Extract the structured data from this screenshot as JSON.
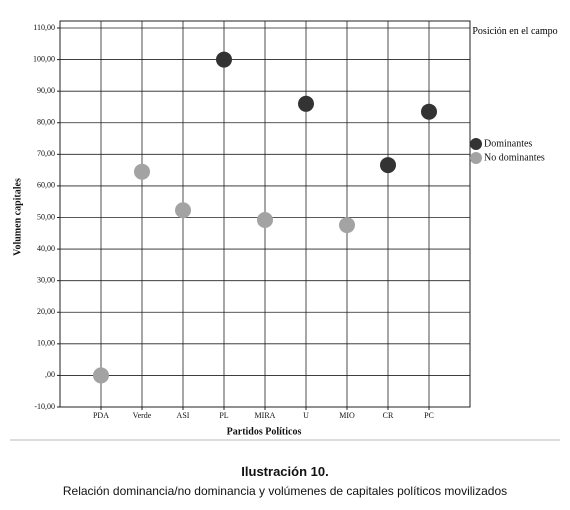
{
  "chart_data": {
    "type": "scatter",
    "y_label": "Volumen capitales",
    "x_label": "Partidos Políticos",
    "categories": [
      "PDA",
      "Verde",
      "ASI",
      "PL",
      "MIRA",
      "U",
      "MIO",
      "CR",
      "PC"
    ],
    "series": [
      {
        "name": "Dominantes",
        "color": "#333333",
        "values": [
          null,
          null,
          null,
          100,
          null,
          86,
          null,
          66.6,
          83.5
        ]
      },
      {
        "name": "No dominantes",
        "color": "#a3a3a3",
        "values": [
          0,
          64.5,
          52.3,
          null,
          49.2,
          null,
          47.6,
          null,
          null
        ]
      }
    ],
    "ylim": [
      -10,
      110
    ],
    "yticks": [
      {
        "value": -10,
        "label": "-10,00"
      },
      {
        "value": 0,
        "label": ",00"
      },
      {
        "value": 10,
        "label": "10,00"
      },
      {
        "value": 20,
        "label": "20,00"
      },
      {
        "value": 30,
        "label": "30,00"
      },
      {
        "value": 40,
        "label": "40,00"
      },
      {
        "value": 50,
        "label": "50,00"
      },
      {
        "value": 60,
        "label": "60,00"
      },
      {
        "value": 70,
        "label": "70,00"
      },
      {
        "value": 80,
        "label": "80,00"
      },
      {
        "value": 90,
        "label": "90,00"
      },
      {
        "value": 100,
        "label": "100,00"
      },
      {
        "value": 110,
        "label": "110,00"
      }
    ],
    "grid": true,
    "legend_title": "Posición en el campo",
    "legend_position": "right",
    "caption_title": "Ilustración 10.",
    "caption": "Relación dominancia/no dominancia y volúmenes de capitales políticos movilizados"
  }
}
